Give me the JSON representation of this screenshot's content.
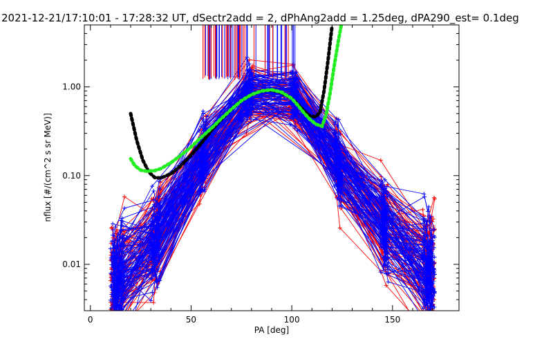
{
  "chart_data": {
    "type": "line",
    "title": "2021-12-21/17:10:01 - 17:28:32 UT, dSectr2add = 2, dPhAng2add = 1.25deg, dPA290_est=   0.1deg",
    "xlabel": "PA [deg]",
    "ylabel": "nflux [#/(cm^2 s sr MeV)]",
    "xlim": [
      -3,
      183
    ],
    "ylim": [
      0.003,
      5.0
    ],
    "yscale": "log",
    "xticks": [
      0,
      50,
      100,
      150
    ],
    "xtick_labels": [
      "0",
      "50",
      "100",
      "150"
    ],
    "yticks": [
      0.01,
      0.1,
      1.0
    ],
    "ytick_labels": [
      "0.01",
      "0.10",
      "1.00"
    ],
    "grid": false,
    "colors": {
      "red": "#ff0000",
      "blue": "#0000ff",
      "black": "#000000",
      "green": "#22ee22"
    },
    "fit_curves": [
      {
        "color": "black",
        "x": [
          20,
          23,
          26,
          29,
          32,
          35,
          40,
          45,
          50,
          55,
          60,
          65,
          70,
          75,
          80,
          85,
          90,
          95,
          100,
          103,
          106,
          109,
          112,
          114,
          116,
          118,
          120
        ],
        "y": [
          0.5,
          0.25,
          0.15,
          0.11,
          0.095,
          0.094,
          0.105,
          0.13,
          0.17,
          0.23,
          0.32,
          0.43,
          0.56,
          0.7,
          0.82,
          0.9,
          0.92,
          0.86,
          0.74,
          0.64,
          0.54,
          0.47,
          0.46,
          0.52,
          0.9,
          2.0,
          4.9
        ]
      },
      {
        "color": "green",
        "x": [
          20,
          22,
          25,
          28,
          32,
          35,
          40,
          45,
          50,
          55,
          60,
          65,
          70,
          75,
          80,
          85,
          90,
          95,
          100,
          103,
          106,
          109,
          112,
          115,
          117,
          119,
          121,
          123,
          124.5
        ],
        "y": [
          0.155,
          0.13,
          0.115,
          0.112,
          0.114,
          0.12,
          0.14,
          0.17,
          0.21,
          0.27,
          0.34,
          0.44,
          0.56,
          0.7,
          0.82,
          0.9,
          0.93,
          0.87,
          0.74,
          0.62,
          0.51,
          0.43,
          0.38,
          0.36,
          0.48,
          0.85,
          1.7,
          3.2,
          4.9
        ]
      }
    ],
    "series_groups": [
      {
        "color": "red",
        "count": 70
      },
      {
        "color": "blue",
        "count": 95
      }
    ],
    "sample_x": [
      11,
      13,
      16,
      31,
      34,
      55,
      57,
      78,
      80,
      100,
      102,
      122,
      124,
      145,
      147,
      166,
      168,
      170
    ],
    "spike_color_order": [
      "blue",
      "red"
    ]
  }
}
